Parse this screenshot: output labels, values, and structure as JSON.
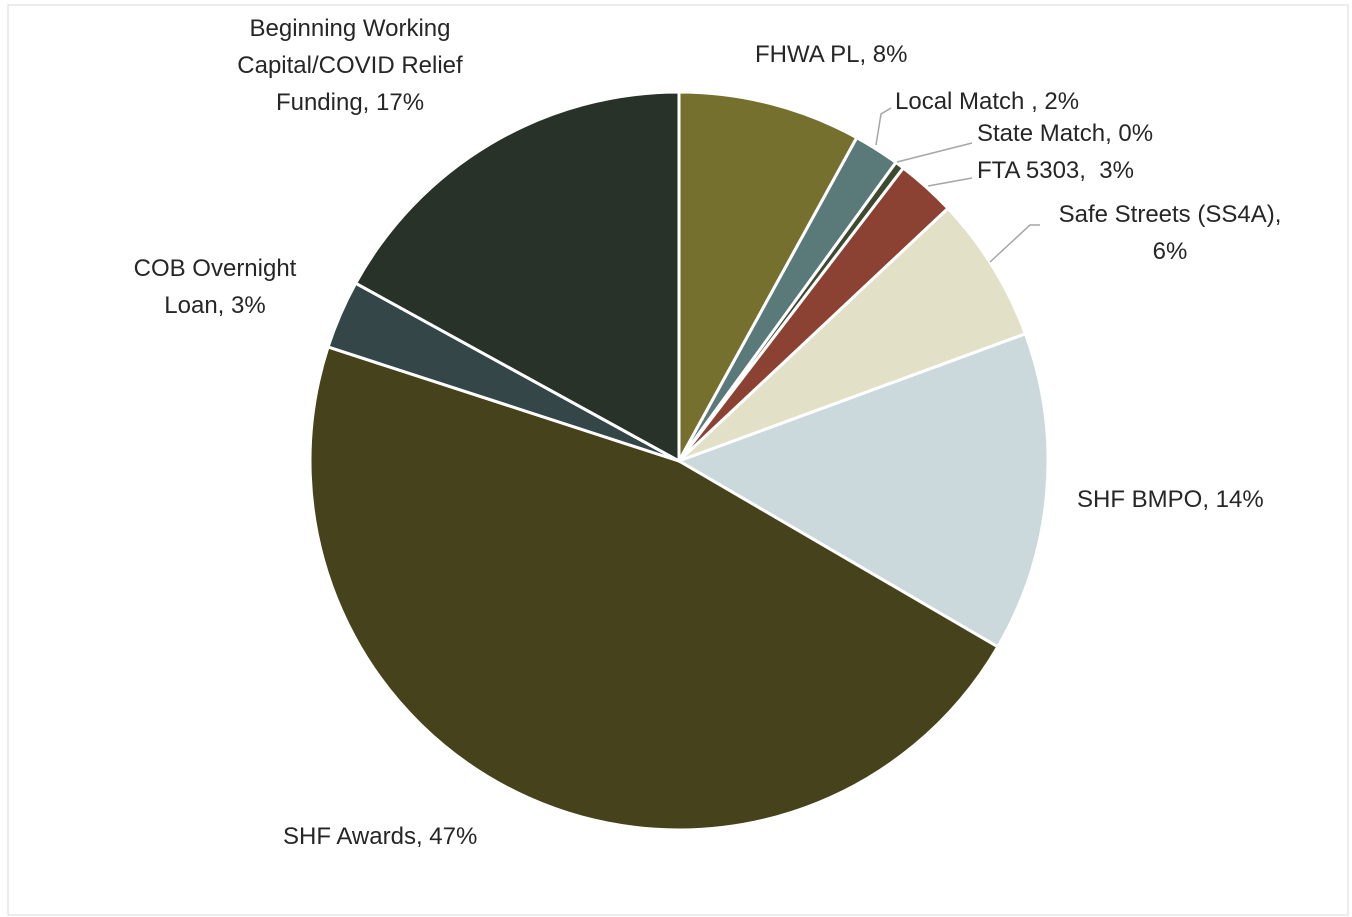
{
  "chart_data": {
    "type": "pie",
    "categories": [
      "FHWA PL, 8%",
      "Local Match , 2%",
      "State Match, 0%",
      "FTA 5303,  3%",
      "Safe Streets (SS4A), 6%",
      "SHF BMPO, 14%",
      "SHF Awards, 47%",
      "COB Overnight Loan, 3%",
      "Beginning Working Capital/COVID Relief Funding, 17%"
    ],
    "values": [
      8.0,
      2.0,
      0.4,
      2.6,
      6.4,
      14.0,
      46.6,
      3.0,
      17.0
    ],
    "colors": [
      "#76702e",
      "#5a7a7a",
      "#3d4a30",
      "#8c4232",
      "#e3e0c8",
      "#cbd9dc",
      "#46421b",
      "#354649",
      "#283228"
    ]
  }
}
